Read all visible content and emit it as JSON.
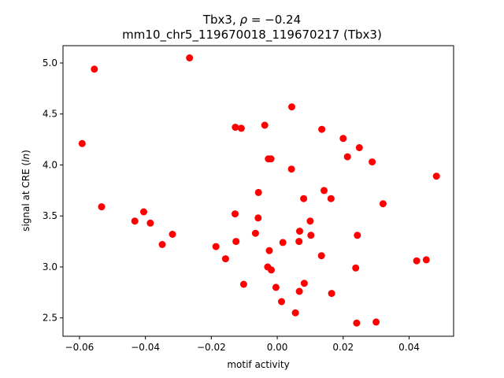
{
  "chart_data": {
    "type": "scatter",
    "title_line1_prefix": "Tbx3, ",
    "title_line1_rho": "ρ",
    "title_line1_suffix": " = −0.24",
    "title_line2": "mm10_chr5_119670018_119670217 (Tbx3)",
    "xlabel": "motif activity",
    "ylabel_prefix": "signal at CRE (",
    "ylabel_italic": "ln",
    "ylabel_suffix": ")",
    "xlim": [
      -0.065,
      0.0535
    ],
    "ylim": [
      2.32,
      5.17
    ],
    "xticks": [
      -0.06,
      -0.04,
      -0.02,
      0.0,
      0.02,
      0.04
    ],
    "xtick_labels": [
      "−0.06",
      "−0.04",
      "−0.02",
      "0.00",
      "0.02",
      "0.04"
    ],
    "yticks": [
      2.5,
      3.0,
      3.5,
      4.0,
      4.5,
      5.0
    ],
    "ytick_labels": [
      "2.5",
      "3.0",
      "3.5",
      "4.0",
      "4.5",
      "5.0"
    ],
    "marker_color": "#ff0000",
    "grid": false,
    "points": [
      {
        "x": -0.0592,
        "y": 4.21
      },
      {
        "x": -0.0555,
        "y": 4.94
      },
      {
        "x": -0.0533,
        "y": 3.59
      },
      {
        "x": -0.0432,
        "y": 3.45
      },
      {
        "x": -0.0405,
        "y": 3.54
      },
      {
        "x": -0.0385,
        "y": 3.43
      },
      {
        "x": -0.0349,
        "y": 3.22
      },
      {
        "x": -0.0318,
        "y": 3.32
      },
      {
        "x": -0.0266,
        "y": 5.05
      },
      {
        "x": -0.0186,
        "y": 3.2
      },
      {
        "x": -0.0157,
        "y": 3.08
      },
      {
        "x": -0.0127,
        "y": 4.37
      },
      {
        "x": -0.0109,
        "y": 4.36
      },
      {
        "x": -0.0128,
        "y": 3.52
      },
      {
        "x": -0.0125,
        "y": 3.25
      },
      {
        "x": -0.0102,
        "y": 2.83
      },
      {
        "x": -0.0066,
        "y": 3.33
      },
      {
        "x": -0.0057,
        "y": 3.73
      },
      {
        "x": -0.0058,
        "y": 3.48
      },
      {
        "x": -0.0038,
        "y": 4.39
      },
      {
        "x": -0.0027,
        "y": 4.06
      },
      {
        "x": -0.0019,
        "y": 4.06
      },
      {
        "x": -0.0024,
        "y": 3.16
      },
      {
        "x": -0.0029,
        "y": 3.0
      },
      {
        "x": -0.0018,
        "y": 2.97
      },
      {
        "x": -0.0004,
        "y": 2.8
      },
      {
        "x": 0.0017,
        "y": 3.24
      },
      {
        "x": 0.0013,
        "y": 2.66
      },
      {
        "x": 0.0044,
        "y": 4.57
      },
      {
        "x": 0.0043,
        "y": 3.96
      },
      {
        "x": 0.0055,
        "y": 2.55
      },
      {
        "x": 0.0068,
        "y": 3.35
      },
      {
        "x": 0.0066,
        "y": 3.25
      },
      {
        "x": 0.0067,
        "y": 2.76
      },
      {
        "x": 0.008,
        "y": 3.67
      },
      {
        "x": 0.0082,
        "y": 2.84
      },
      {
        "x": 0.01,
        "y": 3.45
      },
      {
        "x": 0.0102,
        "y": 3.31
      },
      {
        "x": 0.0135,
        "y": 4.35
      },
      {
        "x": 0.0134,
        "y": 3.11
      },
      {
        "x": 0.0142,
        "y": 3.75
      },
      {
        "x": 0.0163,
        "y": 3.67
      },
      {
        "x": 0.0165,
        "y": 2.74
      },
      {
        "x": 0.02,
        "y": 4.26
      },
      {
        "x": 0.0213,
        "y": 4.08
      },
      {
        "x": 0.0238,
        "y": 2.99
      },
      {
        "x": 0.0243,
        "y": 3.31
      },
      {
        "x": 0.0249,
        "y": 4.17
      },
      {
        "x": 0.0241,
        "y": 2.45
      },
      {
        "x": 0.0288,
        "y": 4.03
      },
      {
        "x": 0.03,
        "y": 2.46
      },
      {
        "x": 0.0321,
        "y": 3.62
      },
      {
        "x": 0.0423,
        "y": 3.06
      },
      {
        "x": 0.0452,
        "y": 3.07
      },
      {
        "x": 0.0483,
        "y": 3.89
      }
    ]
  }
}
